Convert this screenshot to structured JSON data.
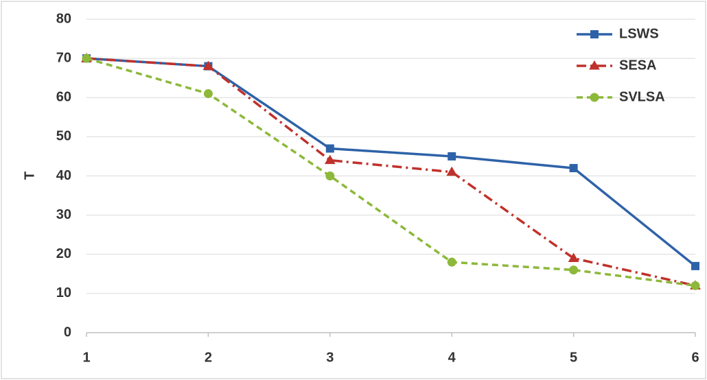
{
  "chart_data": {
    "type": "line",
    "y_label": "T",
    "x": [
      1,
      2,
      3,
      4,
      5,
      6
    ],
    "xlim": [
      1,
      6
    ],
    "xticks": [
      1,
      2,
      3,
      4,
      5,
      6
    ],
    "ylim": [
      0,
      80
    ],
    "yticks": [
      0,
      10,
      20,
      30,
      40,
      50,
      60,
      70,
      80
    ],
    "grid": true,
    "legend": "upper right",
    "series": [
      {
        "name": "LSWS",
        "color": "#2e62a8",
        "dash": "solid",
        "marker": "square",
        "values": [
          70,
          68,
          47,
          45,
          42,
          17
        ]
      },
      {
        "name": "SESA",
        "color": "#c0312b",
        "dash": "dashdot",
        "marker": "triangle",
        "values": [
          70,
          68,
          44,
          41,
          19,
          12
        ]
      },
      {
        "name": "SVLSA",
        "color": "#8db83a",
        "dash": "dashed",
        "marker": "circle",
        "values": [
          70,
          61,
          40,
          18,
          16,
          12
        ]
      }
    ]
  }
}
